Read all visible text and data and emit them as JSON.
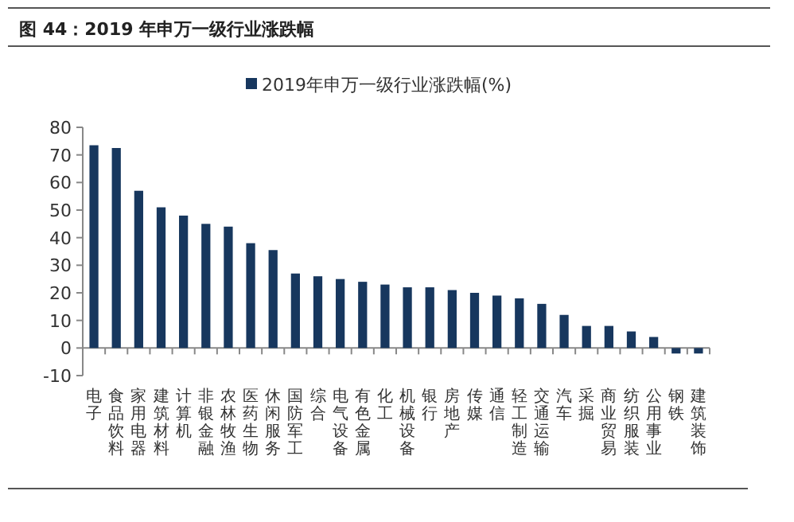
{
  "chart_data": {
    "type": "bar",
    "title": "图 44：2019 年申万一级行业涨跌幅",
    "categories": [
      "电子",
      "食品饮料",
      "家用电器",
      "建筑材料",
      "计算机",
      "非银金融",
      "农林牧渔",
      "医药生物",
      "休闲服务",
      "国防军工",
      "综合",
      "电气设备",
      "有色金属",
      "化工",
      "机械设备",
      "银行",
      "房地产",
      "传媒",
      "通信",
      "轻工制造",
      "交通运输",
      "汽车",
      "采掘",
      "商业贸易",
      "纺织服装",
      "公用事业",
      "钢铁",
      "建筑装饰"
    ],
    "series": [
      {
        "name": "2019年申万一级行业涨跌幅(%)",
        "color": "#17375e",
        "values": [
          73.5,
          72.5,
          57,
          51,
          48,
          45,
          44,
          38,
          35.5,
          27,
          26,
          25,
          24,
          23,
          22,
          22,
          21,
          20,
          19,
          18,
          16,
          12,
          8,
          8,
          6,
          4,
          -2,
          -2
        ]
      }
    ],
    "ylim": [
      -10,
      80
    ],
    "yticks": [
      -10,
      0,
      10,
      20,
      30,
      40,
      50,
      60,
      70,
      80
    ],
    "grid": false,
    "legend": "top"
  }
}
